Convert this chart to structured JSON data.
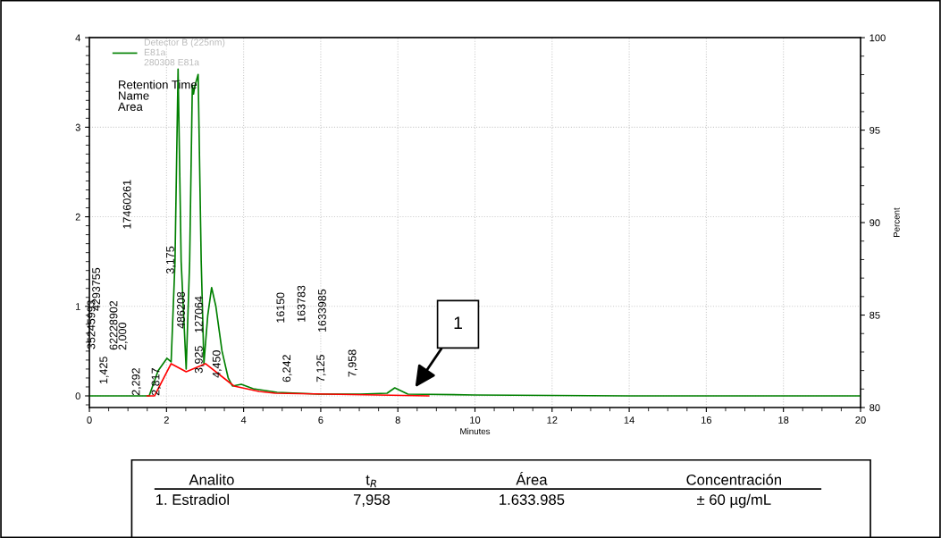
{
  "chart_data": {
    "type": "line",
    "xlabel": "Minutes",
    "y2label": "Percent",
    "xlim": [
      0,
      20
    ],
    "xticks": [
      0,
      2,
      4,
      6,
      8,
      10,
      12,
      14,
      16,
      18,
      20
    ],
    "ylim": [
      -0.13,
      4
    ],
    "yticks": [
      0,
      1,
      2,
      3,
      4
    ],
    "y2lim": [
      80,
      100
    ],
    "y2ticks": [
      80,
      85,
      90,
      95,
      100
    ],
    "grid": true,
    "legend": "top left",
    "marker": "none",
    "line_style": "solid",
    "series": [
      {
        "name": "Detector B (225nm)\nE81a\n280308 E81a",
        "color": "#008000",
        "x": [
          0,
          1.0,
          1.55,
          1.78,
          2.01,
          2.12,
          2.22,
          2.3,
          2.38,
          2.51,
          2.6,
          2.67,
          2.7,
          2.73,
          2.82,
          2.9,
          2.97,
          3.07,
          3.17,
          3.28,
          3.44,
          3.6,
          3.71,
          3.94,
          4.25,
          4.87,
          5.95,
          7.03,
          7.72,
          7.92,
          8.26,
          10,
          14,
          20
        ],
        "values": [
          0,
          0,
          0,
          0.28,
          0.42,
          0.38,
          1.5,
          3.65,
          1.5,
          0.3,
          1.5,
          3.47,
          3.37,
          3.45,
          3.59,
          1.5,
          0.36,
          0.9,
          1.21,
          1.0,
          0.5,
          0.2,
          0.11,
          0.13,
          0.08,
          0.04,
          0.02,
          0.02,
          0.03,
          0.09,
          0.02,
          0.01,
          0,
          0
        ]
      },
      {
        "color": "#ff0000",
        "x": [
          1.5,
          1.69,
          2.12,
          2.51,
          3.01,
          3.75,
          4.4,
          4.82,
          7.5,
          8.8
        ],
        "values": [
          0,
          0,
          0.36,
          0.27,
          0.36,
          0.11,
          0.05,
          0.03,
          0.01,
          0
        ]
      }
    ],
    "annotations": [
      "Retention Time\nName\nArea",
      "35245993",
      "4293755",
      "1,425",
      "62228902",
      "2,000",
      "17460261",
      "2,292",
      "2,817",
      "3,175",
      "486208",
      "3,925",
      "127064",
      "4,450",
      "16150",
      "6,242",
      "163783",
      "7,125",
      "1633985",
      "7,958",
      "1",
      "Analito",
      "t$_{R}$",
      "Área",
      "Concentración",
      "1. Estradiol",
      "7,958",
      "1.633.985",
      "± 60 µg/mL"
    ]
  }
}
